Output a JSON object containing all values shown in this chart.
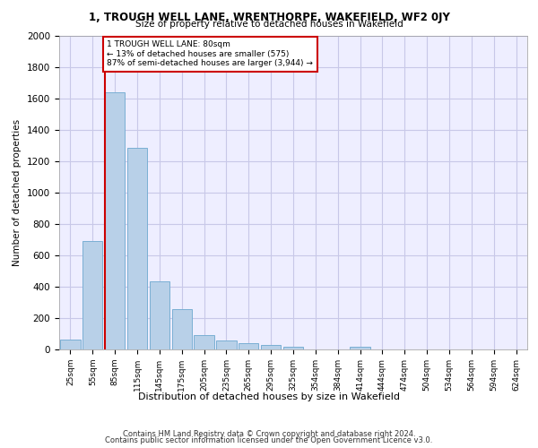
{
  "title1": "1, TROUGH WELL LANE, WRENTHORPE, WAKEFIELD, WF2 0JY",
  "title2": "Size of property relative to detached houses in Wakefield",
  "xlabel": "Distribution of detached houses by size in Wakefield",
  "ylabel": "Number of detached properties",
  "categories": [
    "25sqm",
    "55sqm",
    "85sqm",
    "115sqm",
    "145sqm",
    "175sqm",
    "205sqm",
    "235sqm",
    "265sqm",
    "295sqm",
    "325sqm",
    "354sqm",
    "384sqm",
    "414sqm",
    "444sqm",
    "474sqm",
    "504sqm",
    "534sqm",
    "564sqm",
    "594sqm",
    "624sqm"
  ],
  "values": [
    65,
    690,
    1640,
    1285,
    435,
    255,
    90,
    55,
    38,
    28,
    18,
    0,
    0,
    18,
    0,
    0,
    0,
    0,
    0,
    0,
    0
  ],
  "bar_color": "#b8d0e8",
  "bar_edge_color": "#7aafd4",
  "vline_bin": 2,
  "annotation_text": "1 TROUGH WELL LANE: 80sqm\n← 13% of detached houses are smaller (575)\n87% of semi-detached houses are larger (3,944) →",
  "annotation_box_color": "#ffffff",
  "annotation_border_color": "#cc0000",
  "vline_color": "#cc0000",
  "ylim": [
    0,
    2000
  ],
  "yticks": [
    0,
    200,
    400,
    600,
    800,
    1000,
    1200,
    1400,
    1600,
    1800,
    2000
  ],
  "grid_color": "#c8c8e8",
  "bg_color": "#eeeeff",
  "footer1": "Contains HM Land Registry data © Crown copyright and database right 2024.",
  "footer2": "Contains public sector information licensed under the Open Government Licence v3.0."
}
